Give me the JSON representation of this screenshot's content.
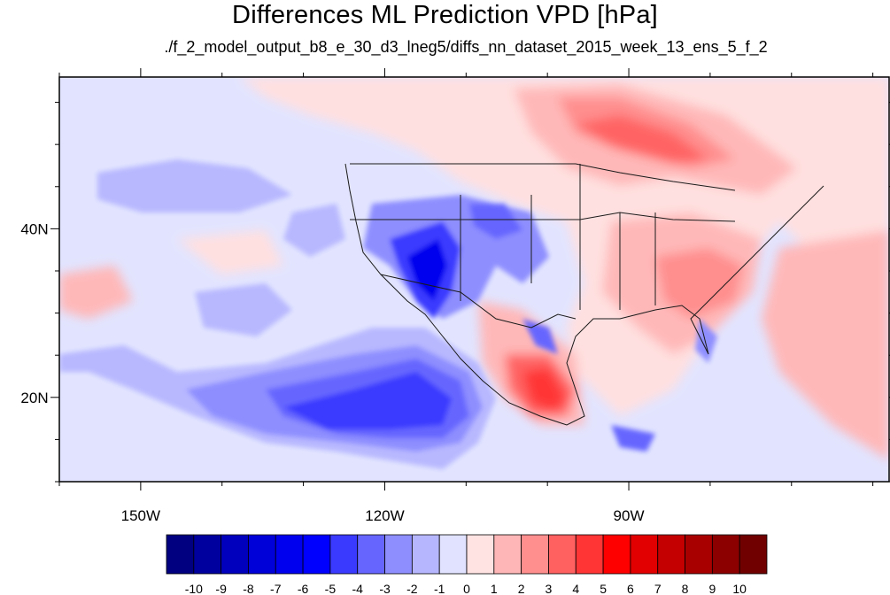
{
  "title": "Differences ML Prediction VPD [hPa]",
  "subtitle": "./f_2_model_output_b8_e_30_d3_lneg5/diffs_nn_dataset_2015_week_13_ens_5_f_2",
  "map": {
    "projection": "cylindrical-equidistant",
    "lon_range": [
      -160,
      -58
    ],
    "lat_range": [
      10,
      58
    ],
    "x_ticks": [
      {
        "lon": -150,
        "label": "150W"
      },
      {
        "lon": -120,
        "label": "120W"
      },
      {
        "lon": -90,
        "label": "90W"
      }
    ],
    "y_ticks": [
      {
        "lat": 40,
        "label": "40N"
      },
      {
        "lat": 20,
        "label": "20N"
      }
    ],
    "field": "VPD difference (hPa)",
    "regions": [
      {
        "name": "pacific-background",
        "value": -1,
        "lon": [
          -160,
          -58
        ],
        "lat": [
          10,
          58
        ]
      },
      {
        "name": "canada-positive",
        "value": 3,
        "lon": [
          -112,
          -75
        ],
        "lat": [
          48,
          58
        ]
      },
      {
        "name": "eastern-us-positive",
        "value": 2,
        "lon": [
          -97,
          -72
        ],
        "lat": [
          30,
          47
        ]
      },
      {
        "name": "southeast-us-peak",
        "value": 4,
        "lon": [
          -85,
          -77
        ],
        "lat": [
          33,
          37
        ]
      },
      {
        "name": "southwest-us-negative",
        "value": -5,
        "lon": [
          -121,
          -110
        ],
        "lat": [
          30,
          40
        ]
      },
      {
        "name": "eastern-pacific-negative",
        "value": -5,
        "lon": [
          -145,
          -115
        ],
        "lat": [
          13,
          25
        ]
      },
      {
        "name": "mexico-positive",
        "value": 5,
        "lon": [
          -107,
          -97
        ],
        "lat": [
          18,
          26
        ]
      }
    ]
  },
  "colorbar": {
    "labels": [
      "-10",
      "-9",
      "-8",
      "-7",
      "-6",
      "-5",
      "-4",
      "-3",
      "-2",
      "-1",
      "0",
      "1",
      "2",
      "3",
      "4",
      "5",
      "6",
      "7",
      "8",
      "9",
      "10"
    ],
    "colors": [
      "#000080",
      "#00009e",
      "#0000bd",
      "#0000d8",
      "#0000ee",
      "#0000ff",
      "#3a3aff",
      "#6666ff",
      "#8e8eff",
      "#b6b6ff",
      "#e0e2ff",
      "#ffe2e2",
      "#ffb6b6",
      "#ff8e8e",
      "#ff6060",
      "#ff3535",
      "#ff0000",
      "#e20000",
      "#c40000",
      "#a80000",
      "#8c0000",
      "#700000"
    ]
  },
  "colors": {
    "frame": "#000000",
    "border": "#1a1a1a"
  }
}
